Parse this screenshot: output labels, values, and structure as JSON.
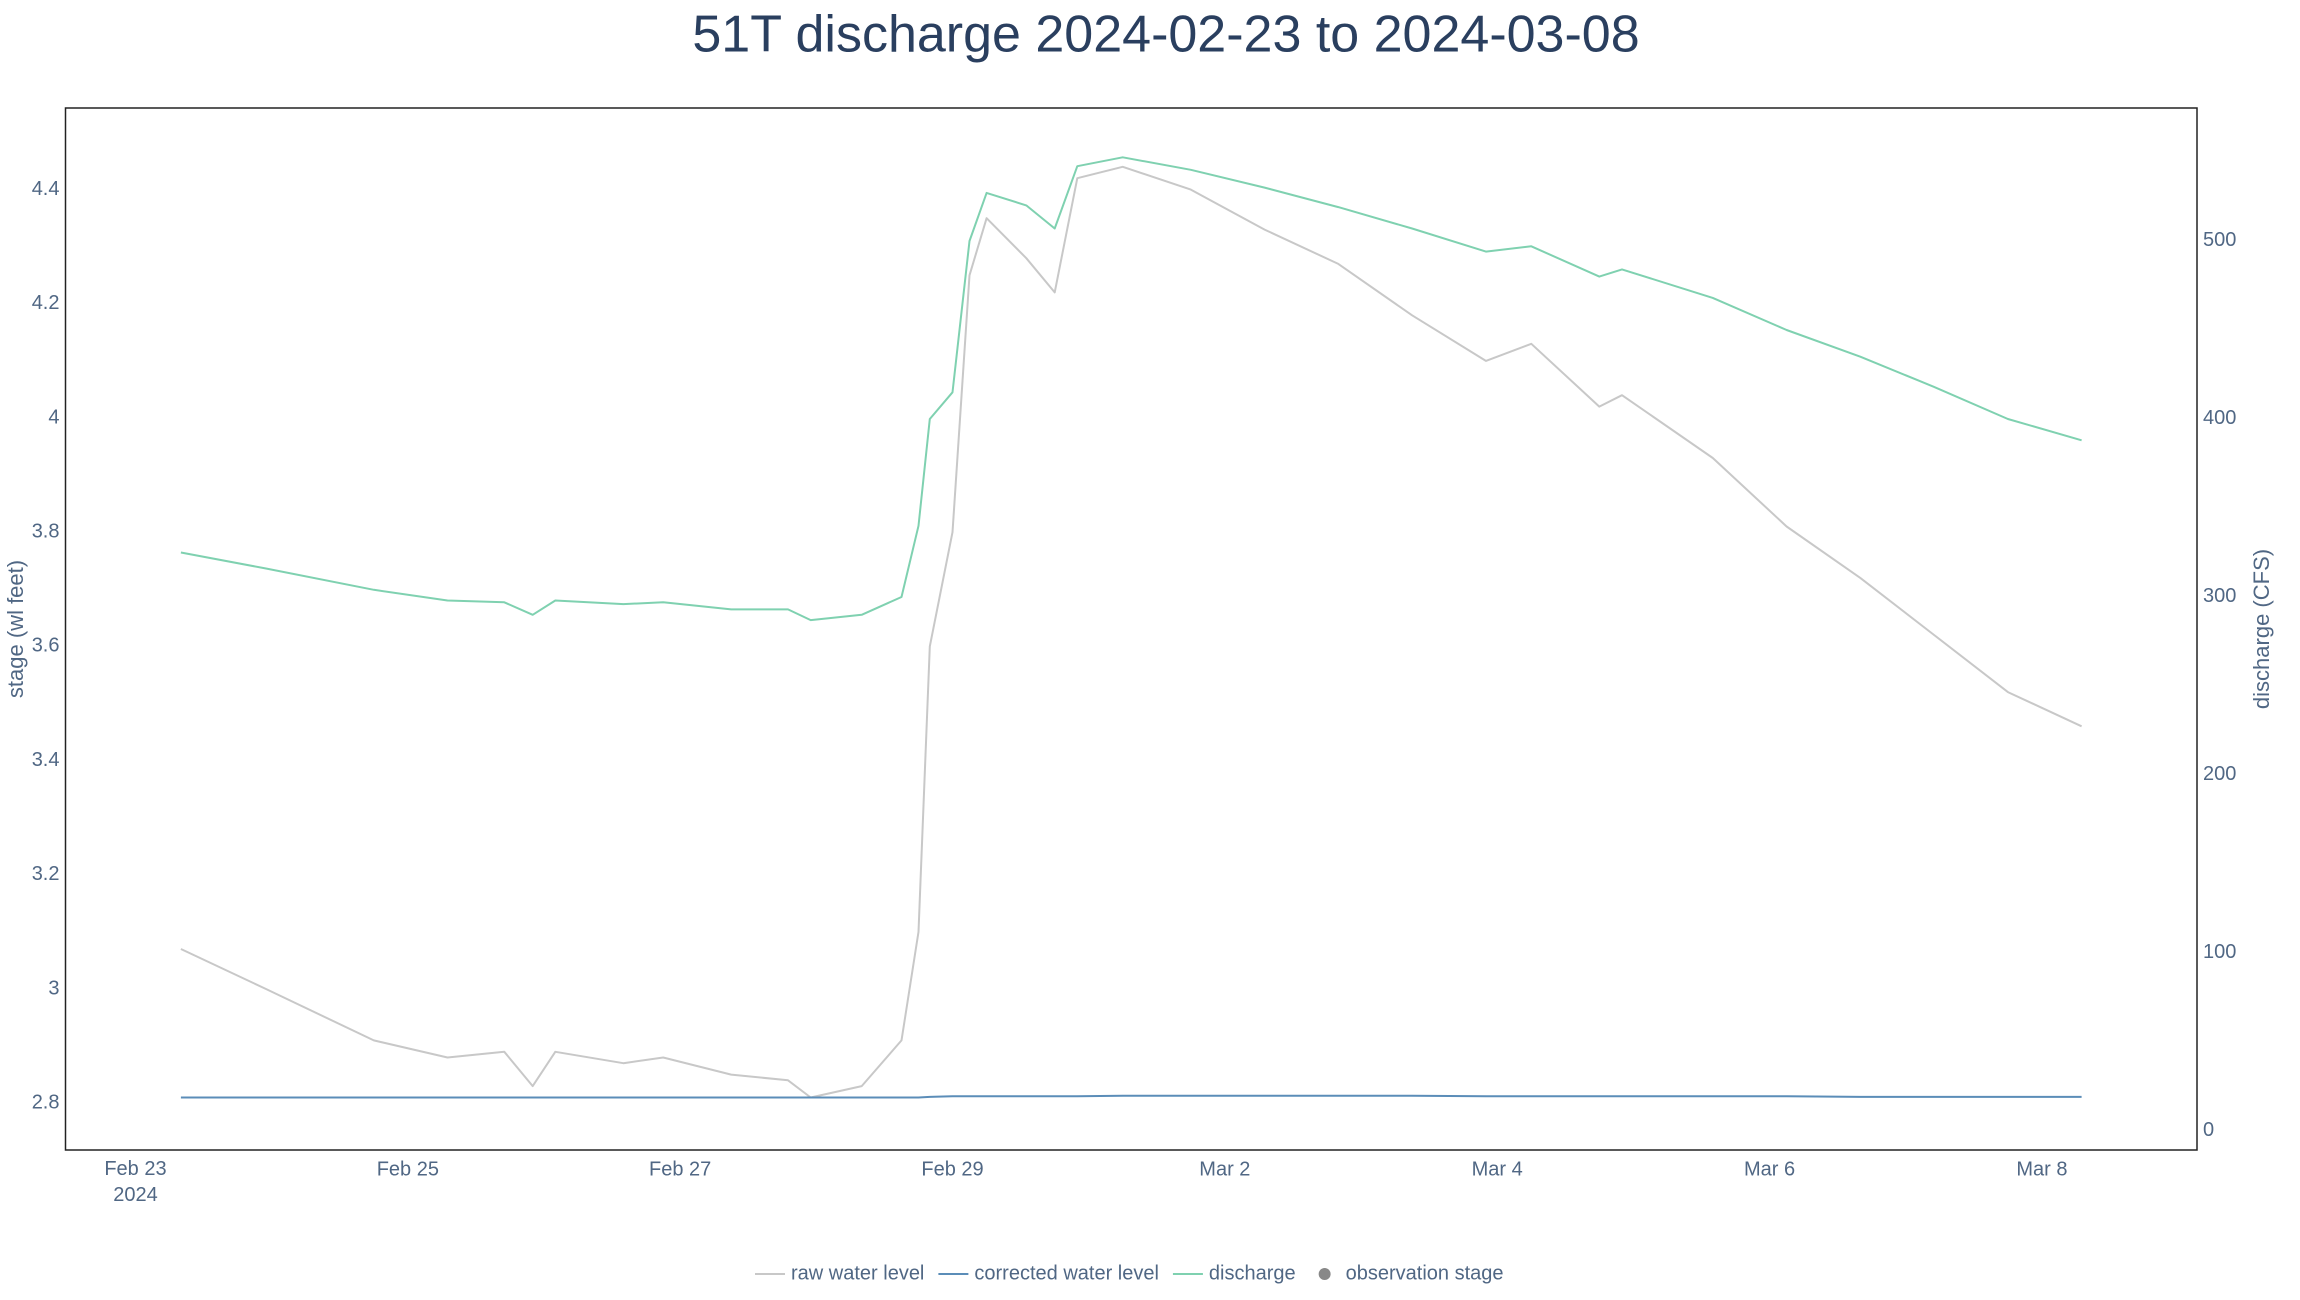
{
  "chart_data": {
    "type": "line",
    "title": "51T discharge 2024-02-23 to 2024-03-08",
    "y_label": "stage (wl feet)",
    "y2_label": "discharge (CFS)",
    "x": [
      "2024-02-23T08:00",
      "2024-02-23T23:00",
      "2024-02-24T18:00",
      "2024-02-25T07:00",
      "2024-02-25T17:00",
      "2024-02-25T22:00",
      "2024-02-26T02:00",
      "2024-02-26T14:00",
      "2024-02-26T21:00",
      "2024-02-27T09:00",
      "2024-02-27T19:00",
      "2024-02-27T23:00",
      "2024-02-28T08:00",
      "2024-02-28T15:00",
      "2024-02-28T18:00",
      "2024-02-28T20:00",
      "2024-02-29T00:00",
      "2024-02-29T03:00",
      "2024-02-29T06:00",
      "2024-02-29T13:00",
      "2024-02-29T18:00",
      "2024-02-29T22:00",
      "2024-03-01T06:00",
      "2024-03-01T18:00",
      "2024-03-02T07:00",
      "2024-03-02T20:00",
      "2024-03-03T09:00",
      "2024-03-03T22:00",
      "2024-03-04T06:00",
      "2024-03-04T18:00",
      "2024-03-04T22:00",
      "2024-03-05T14:00",
      "2024-03-06T03:00",
      "2024-03-06T16:00",
      "2024-03-07T05:00",
      "2024-03-07T18:00",
      "2024-03-08T07:00"
    ],
    "series": [
      {
        "name": "raw water level",
        "color": "#c8c8c8",
        "axis": "y",
        "mode": "line",
        "values": [
          3.07,
          3.0,
          2.91,
          2.88,
          2.89,
          2.83,
          2.89,
          2.87,
          2.88,
          2.85,
          2.84,
          2.81,
          2.83,
          2.91,
          3.1,
          3.6,
          3.8,
          4.25,
          4.35,
          4.28,
          4.22,
          4.42,
          4.44,
          4.4,
          4.33,
          4.27,
          4.18,
          4.1,
          4.13,
          4.02,
          4.04,
          3.93,
          3.81,
          3.72,
          3.62,
          3.52,
          3.46
        ]
      },
      {
        "name": "corrected water level",
        "color": "#5b8db8",
        "axis": "y",
        "mode": "line",
        "values": [
          2.81,
          2.81,
          2.81,
          2.81,
          2.81,
          2.81,
          2.81,
          2.81,
          2.81,
          2.81,
          2.81,
          2.81,
          2.81,
          2.81,
          2.81,
          2.811,
          2.812,
          2.812,
          2.812,
          2.812,
          2.812,
          2.812,
          2.813,
          2.813,
          2.813,
          2.813,
          2.813,
          2.812,
          2.812,
          2.812,
          2.812,
          2.812,
          2.812,
          2.811,
          2.811,
          2.811,
          2.811
        ]
      },
      {
        "name": "discharge",
        "color": "#7fd1b0",
        "axis": "y2",
        "mode": "line",
        "values": [
          325,
          316,
          304,
          298,
          297,
          290,
          298,
          296,
          297,
          293,
          293,
          287,
          290,
          300,
          340,
          400,
          415,
          500,
          527,
          520,
          507,
          542,
          547,
          540,
          530,
          519,
          507,
          494,
          497,
          480,
          484,
          468,
          450,
          435,
          418,
          400,
          388
        ]
      },
      {
        "name": "observation stage",
        "color": "#888888",
        "axis": "y",
        "mode": "markers",
        "values": [
          null,
          null,
          null,
          null,
          null,
          null,
          null,
          null,
          null,
          null,
          null,
          null,
          null,
          null,
          null,
          null,
          null,
          null,
          null,
          null,
          null,
          null,
          null,
          null,
          null,
          null,
          null,
          null,
          null,
          null,
          null,
          null,
          null,
          null,
          null,
          null,
          null
        ]
      }
    ],
    "xlim": [
      "2024-02-22T11:40",
      "2024-03-09T03:20"
    ],
    "xticks": [
      {
        "value": "2024-02-23",
        "label": "Feb 23\n2024"
      },
      {
        "value": "2024-02-25",
        "label": "Feb 25"
      },
      {
        "value": "2024-02-27",
        "label": "Feb 27"
      },
      {
        "value": "2024-02-29",
        "label": "Feb 29"
      },
      {
        "value": "2024-03-02",
        "label": "Mar 2"
      },
      {
        "value": "2024-03-04",
        "label": "Mar 4"
      },
      {
        "value": "2024-03-06",
        "label": "Mar 6"
      },
      {
        "value": "2024-03-08",
        "label": "Mar 8"
      }
    ],
    "ylim": [
      2.718,
      4.543
    ],
    "yticks": [
      2.8,
      3,
      3.2,
      3.4,
      3.6,
      3.8,
      4,
      4.2,
      4.4
    ],
    "y2lim": [
      -10.7,
      574.7
    ],
    "y2ticks": [
      0,
      100,
      200,
      300,
      400,
      500
    ],
    "grid": false,
    "legend": "bottom"
  }
}
